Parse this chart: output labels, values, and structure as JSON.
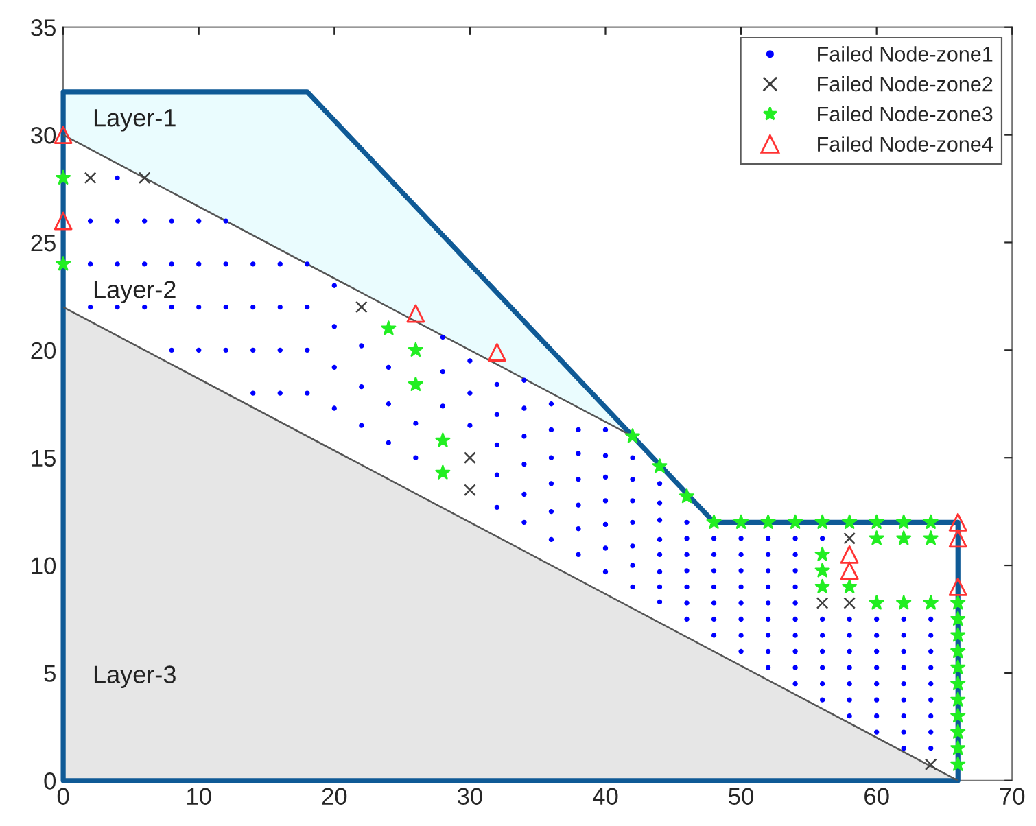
{
  "chart_data": {
    "type": "scatter",
    "xlim": [
      0,
      70
    ],
    "ylim": [
      0,
      35
    ],
    "xticks": [
      0,
      10,
      20,
      30,
      40,
      50,
      60,
      70
    ],
    "yticks": [
      0,
      5,
      10,
      15,
      20,
      25,
      30,
      35
    ],
    "grid": false,
    "legend": "top right",
    "annotations": [
      "Layer-1",
      "Layer-2",
      "Layer-3"
    ],
    "series": [
      {
        "type": "line",
        "color": "#0f5a96",
        "x": [
          0,
          18,
          42,
          48,
          66
        ],
        "values": [
          32,
          32,
          16,
          12,
          12
        ]
      },
      {
        "type": "line",
        "color": "#555555",
        "x": [
          0,
          42
        ],
        "values": [
          30,
          16
        ]
      },
      {
        "type": "line",
        "color": "#555555",
        "x": [
          0,
          66
        ],
        "values": [
          22,
          0
        ]
      },
      {
        "name": "Failed Node-zone1",
        "color": "#0000ff",
        "marker": "circle",
        "x": [
          4,
          2,
          4,
          6,
          8,
          10,
          12,
          2,
          4,
          6,
          8,
          10,
          12,
          14,
          16,
          18,
          2,
          4,
          6,
          8,
          10,
          12,
          14,
          16,
          18,
          8,
          10,
          12,
          14,
          16,
          18,
          14,
          16,
          18,
          20,
          20,
          20,
          20,
          22,
          22,
          22,
          24,
          24,
          24,
          26,
          26,
          28,
          28,
          28,
          30,
          30,
          30,
          32,
          32,
          32,
          32,
          32,
          34,
          34,
          34,
          34,
          34,
          34,
          36,
          36,
          36,
          36,
          36,
          36,
          38,
          38,
          38,
          38,
          38,
          38,
          40,
          40,
          40,
          40,
          40,
          40,
          40,
          42,
          42,
          42,
          42,
          42,
          42,
          42,
          44,
          44,
          44,
          44,
          44,
          44,
          44,
          44,
          46,
          46,
          46,
          46,
          46,
          46,
          46,
          48,
          48,
          48,
          48,
          48,
          48,
          48,
          50,
          50,
          50,
          50,
          50,
          50,
          50,
          50,
          52,
          52,
          52,
          52,
          52,
          52,
          52,
          52,
          52,
          54,
          54,
          54,
          54,
          54,
          54,
          54,
          54,
          54,
          54,
          56,
          56,
          56,
          56,
          56,
          56,
          56,
          58,
          58,
          58,
          58,
          58,
          58,
          58,
          60,
          60,
          60,
          60,
          60,
          60,
          60,
          60,
          62,
          62,
          62,
          62,
          62,
          62,
          62,
          62,
          62,
          64,
          64,
          64,
          64,
          64,
          64,
          64,
          64,
          64
        ],
        "values": [
          28,
          26,
          26,
          26,
          26,
          26,
          26,
          24,
          24,
          24,
          24,
          24,
          24,
          24,
          24,
          24,
          22,
          22,
          22,
          22,
          22,
          22,
          22,
          22,
          22,
          20,
          20,
          20,
          20,
          20,
          20,
          18,
          18,
          18,
          23.0,
          21.1,
          19.2,
          17.3,
          20.2,
          18.3,
          16.5,
          19.2,
          17.5,
          15.7,
          16.6,
          15.0,
          20.6,
          19.0,
          17.4,
          19.5,
          18.0,
          16.5,
          18.4,
          17.0,
          15.6,
          14.2,
          12.7,
          18.6,
          17.3,
          16.0,
          14.7,
          13.3,
          12.0,
          17.5,
          16.3,
          15.0,
          13.8,
          12.5,
          11.2,
          16.3,
          15.2,
          14.0,
          12.8,
          11.7,
          10.5,
          16.3,
          15.1,
          14.1,
          13.0,
          11.9,
          10.8,
          9.7,
          15.0,
          14.0,
          13.0,
          12.0,
          10.9,
          10.0,
          9.0,
          13.8,
          12.9,
          12.1,
          11.2,
          10.5,
          9.7,
          9.0,
          8.3,
          12.0,
          11.25,
          10.5,
          9.75,
          9.0,
          8.25,
          7.5,
          11.25,
          10.5,
          9.75,
          9.0,
          8.25,
          7.5,
          6.75,
          11.25,
          10.5,
          9.75,
          9.0,
          8.25,
          7.5,
          6.75,
          6.0,
          11.25,
          10.5,
          9.75,
          9.0,
          8.25,
          7.5,
          6.75,
          6.0,
          5.25,
          11.25,
          10.5,
          9.75,
          9.0,
          8.25,
          7.5,
          6.75,
          6.0,
          5.25,
          4.5,
          11.25,
          7.5,
          6.75,
          6.0,
          5.25,
          4.5,
          3.75,
          7.5,
          6.75,
          6.0,
          5.25,
          4.5,
          3.75,
          3.0,
          7.5,
          6.75,
          6.0,
          5.25,
          4.5,
          3.75,
          3.0,
          2.25,
          7.5,
          6.75,
          6.0,
          5.25,
          4.5,
          3.75,
          3.0,
          2.25,
          1.5,
          7.5,
          6.75,
          6.0,
          5.25,
          4.5,
          3.75,
          3.0,
          2.25,
          1.5
        ]
      },
      {
        "name": "Failed Node-zone2",
        "color": "#404040",
        "marker": "cross",
        "x": [
          2,
          6,
          22,
          30,
          30,
          56,
          58,
          58,
          64
        ],
        "values": [
          28,
          28,
          22,
          15,
          13.5,
          8.25,
          8.25,
          11.25,
          0.75
        ]
      },
      {
        "name": "Failed Node-zone3",
        "color": "#22ee22",
        "marker": "star",
        "x": [
          0,
          0,
          24,
          26,
          26,
          28,
          28,
          42,
          44,
          46,
          48,
          50,
          52,
          54,
          56,
          58,
          60,
          62,
          64,
          56,
          56,
          56,
          58,
          60,
          62,
          64,
          60,
          62,
          64,
          66,
          66,
          66,
          66,
          66,
          66,
          66,
          66,
          66,
          66,
          66
        ],
        "values": [
          28,
          24,
          21,
          20,
          18.4,
          15.8,
          14.3,
          16,
          14.6,
          13.2,
          12,
          12,
          12,
          12,
          12,
          12,
          12,
          12,
          12,
          10.5,
          9.75,
          9,
          9,
          11.25,
          11.25,
          11.25,
          8.25,
          8.25,
          8.25,
          8.25,
          7.5,
          6.75,
          6,
          5.25,
          4.5,
          3.75,
          3,
          2.25,
          1.5,
          0.75
        ]
      },
      {
        "name": "Failed Node-zone4",
        "color": "#ff3333",
        "marker": "triangle",
        "x": [
          0,
          0,
          26,
          32,
          58,
          58,
          66,
          66,
          66
        ],
        "values": [
          30,
          26,
          21.7,
          19.9,
          10.5,
          9.75,
          12,
          11.25,
          9
        ]
      }
    ]
  }
}
